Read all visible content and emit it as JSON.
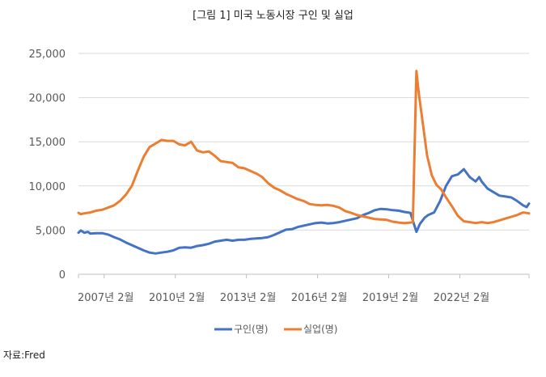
{
  "figure_title": "[그림 1] 미국 노동시장 구인 및 실업",
  "source": "자료:Fred",
  "chart_data": {
    "type": "line",
    "title": "[그림 1] 미국 노동시장 구인 및 실업",
    "xlabel": "",
    "ylabel": "",
    "ylim": [
      0,
      25000
    ],
    "yticks": [
      0,
      5000,
      10000,
      15000,
      20000,
      25000
    ],
    "ytick_labels": [
      "0",
      "5,000",
      "10,000",
      "15,000",
      "20,000",
      "25,000"
    ],
    "x_range": [
      2006.0,
      2024.0
    ],
    "xticks": [
      2007.083,
      2010.083,
      2013.083,
      2016.083,
      2019.083,
      2022.083
    ],
    "xtick_labels": [
      "2007년 2월",
      "2010년 2월",
      "2013년 2월",
      "2016년 2월",
      "2019년 2월",
      "2022년 2월"
    ],
    "grid": "horizontal",
    "legend_position": "bottom",
    "series": [
      {
        "name": "구인(명)",
        "color": "#4472C4",
        "points": [
          [
            2006.0,
            4700
          ],
          [
            2006.1,
            4950
          ],
          [
            2006.25,
            4700
          ],
          [
            2006.4,
            4800
          ],
          [
            2006.5,
            4600
          ],
          [
            2006.75,
            4650
          ],
          [
            2007.0,
            4650
          ],
          [
            2007.25,
            4500
          ],
          [
            2007.5,
            4200
          ],
          [
            2007.75,
            3950
          ],
          [
            2008.0,
            3600
          ],
          [
            2008.25,
            3300
          ],
          [
            2008.5,
            3000
          ],
          [
            2008.75,
            2700
          ],
          [
            2009.0,
            2450
          ],
          [
            2009.25,
            2350
          ],
          [
            2009.5,
            2450
          ],
          [
            2009.75,
            2550
          ],
          [
            2010.0,
            2700
          ],
          [
            2010.25,
            3000
          ],
          [
            2010.5,
            3050
          ],
          [
            2010.75,
            3000
          ],
          [
            2011.0,
            3200
          ],
          [
            2011.25,
            3300
          ],
          [
            2011.5,
            3450
          ],
          [
            2011.75,
            3700
          ],
          [
            2012.0,
            3800
          ],
          [
            2012.25,
            3900
          ],
          [
            2012.5,
            3800
          ],
          [
            2012.75,
            3900
          ],
          [
            2013.0,
            3900
          ],
          [
            2013.25,
            4000
          ],
          [
            2013.5,
            4050
          ],
          [
            2013.75,
            4100
          ],
          [
            2014.0,
            4200
          ],
          [
            2014.25,
            4450
          ],
          [
            2014.5,
            4750
          ],
          [
            2014.75,
            5050
          ],
          [
            2015.0,
            5100
          ],
          [
            2015.25,
            5350
          ],
          [
            2015.5,
            5500
          ],
          [
            2015.75,
            5650
          ],
          [
            2016.0,
            5800
          ],
          [
            2016.25,
            5850
          ],
          [
            2016.5,
            5750
          ],
          [
            2016.75,
            5800
          ],
          [
            2017.0,
            5900
          ],
          [
            2017.25,
            6050
          ],
          [
            2017.5,
            6200
          ],
          [
            2017.75,
            6350
          ],
          [
            2018.0,
            6700
          ],
          [
            2018.25,
            6950
          ],
          [
            2018.5,
            7250
          ],
          [
            2018.75,
            7400
          ],
          [
            2019.0,
            7350
          ],
          [
            2019.25,
            7250
          ],
          [
            2019.5,
            7200
          ],
          [
            2019.75,
            7050
          ],
          [
            2020.0,
            6950
          ],
          [
            2020.25,
            4800
          ],
          [
            2020.4,
            5700
          ],
          [
            2020.6,
            6400
          ],
          [
            2020.75,
            6700
          ],
          [
            2021.0,
            7000
          ],
          [
            2021.25,
            8300
          ],
          [
            2021.5,
            10000
          ],
          [
            2021.75,
            11100
          ],
          [
            2022.0,
            11300
          ],
          [
            2022.25,
            11900
          ],
          [
            2022.5,
            11000
          ],
          [
            2022.75,
            10500
          ],
          [
            2022.9,
            11000
          ],
          [
            2023.0,
            10500
          ],
          [
            2023.25,
            9700
          ],
          [
            2023.5,
            9300
          ],
          [
            2023.75,
            8900
          ],
          [
            2024.0,
            8800
          ],
          [
            2024.25,
            8700
          ],
          [
            2024.5,
            8300
          ],
          [
            2024.75,
            7800
          ],
          [
            2024.9,
            7600
          ],
          [
            2025.0,
            8000
          ]
        ]
      },
      {
        "name": "실업(명)",
        "color": "#ED7D31",
        "points": [
          [
            2006.0,
            6950
          ],
          [
            2006.1,
            6800
          ],
          [
            2006.25,
            6900
          ],
          [
            2006.5,
            7000
          ],
          [
            2006.75,
            7200
          ],
          [
            2007.0,
            7300
          ],
          [
            2007.25,
            7550
          ],
          [
            2007.5,
            7800
          ],
          [
            2007.75,
            8300
          ],
          [
            2008.0,
            9000
          ],
          [
            2008.25,
            10000
          ],
          [
            2008.5,
            11700
          ],
          [
            2008.75,
            13300
          ],
          [
            2009.0,
            14400
          ],
          [
            2009.25,
            14800
          ],
          [
            2009.5,
            15200
          ],
          [
            2009.75,
            15100
          ],
          [
            2010.0,
            15100
          ],
          [
            2010.25,
            14700
          ],
          [
            2010.5,
            14600
          ],
          [
            2010.75,
            15000
          ],
          [
            2011.0,
            14000
          ],
          [
            2011.25,
            13800
          ],
          [
            2011.5,
            13900
          ],
          [
            2011.75,
            13400
          ],
          [
            2012.0,
            12800
          ],
          [
            2012.25,
            12700
          ],
          [
            2012.5,
            12600
          ],
          [
            2012.75,
            12100
          ],
          [
            2013.0,
            12000
          ],
          [
            2013.25,
            11700
          ],
          [
            2013.5,
            11400
          ],
          [
            2013.75,
            11000
          ],
          [
            2014.0,
            10300
          ],
          [
            2014.25,
            9800
          ],
          [
            2014.5,
            9500
          ],
          [
            2014.75,
            9100
          ],
          [
            2015.0,
            8800
          ],
          [
            2015.25,
            8500
          ],
          [
            2015.5,
            8300
          ],
          [
            2015.75,
            7950
          ],
          [
            2016.0,
            7850
          ],
          [
            2016.25,
            7800
          ],
          [
            2016.5,
            7850
          ],
          [
            2016.75,
            7750
          ],
          [
            2017.0,
            7550
          ],
          [
            2017.25,
            7150
          ],
          [
            2017.5,
            6950
          ],
          [
            2017.75,
            6700
          ],
          [
            2018.0,
            6550
          ],
          [
            2018.25,
            6400
          ],
          [
            2018.5,
            6250
          ],
          [
            2018.75,
            6200
          ],
          [
            2019.0,
            6150
          ],
          [
            2019.25,
            5950
          ],
          [
            2019.5,
            5850
          ],
          [
            2019.75,
            5800
          ],
          [
            2020.0,
            5850
          ],
          [
            2020.1,
            5900
          ],
          [
            2020.25,
            23000
          ],
          [
            2020.35,
            20500
          ],
          [
            2020.5,
            17500
          ],
          [
            2020.7,
            13500
          ],
          [
            2020.9,
            11200
          ],
          [
            2021.1,
            10100
          ],
          [
            2021.3,
            9600
          ],
          [
            2021.5,
            8700
          ],
          [
            2021.75,
            7700
          ],
          [
            2022.0,
            6600
          ],
          [
            2022.25,
            6000
          ],
          [
            2022.5,
            5900
          ],
          [
            2022.75,
            5800
          ],
          [
            2023.0,
            5900
          ],
          [
            2023.25,
            5800
          ],
          [
            2023.5,
            5900
          ],
          [
            2023.75,
            6100
          ],
          [
            2024.0,
            6300
          ],
          [
            2024.25,
            6500
          ],
          [
            2024.5,
            6700
          ],
          [
            2024.75,
            7000
          ],
          [
            2025.0,
            6900
          ]
        ]
      }
    ]
  }
}
